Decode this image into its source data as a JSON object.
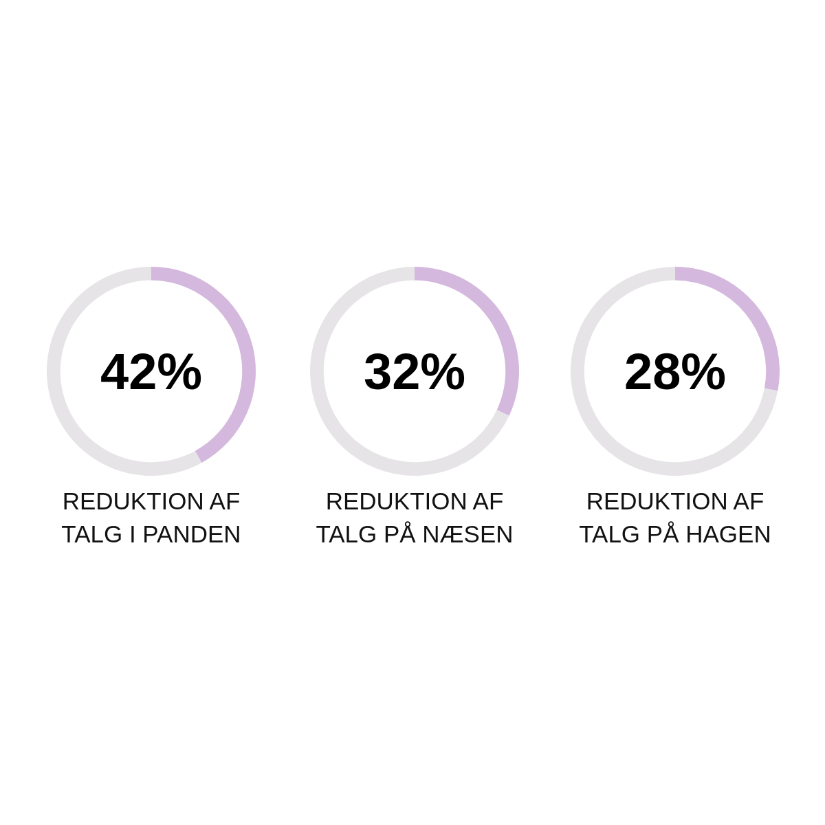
{
  "chart_data": [
    {
      "type": "donut",
      "title": "REDUKTION AF TALG I PANDEN",
      "categories": [
        null,
        null
      ],
      "values": [
        42,
        58
      ],
      "colors": [
        "#d4b8dd",
        "#e6e4e7"
      ],
      "annotations": [
        "42%"
      ]
    },
    {
      "type": "donut",
      "title": "REDUKTION AF TALG PÅ NÆSEN",
      "categories": [
        null,
        null
      ],
      "values": [
        32,
        68
      ],
      "colors": [
        "#d4b8dd",
        "#e6e4e7"
      ],
      "annotations": [
        "32%"
      ]
    },
    {
      "type": "donut",
      "title": "REDUKTION AF TALG PÅ HAGEN",
      "categories": [
        null,
        null
      ],
      "values": [
        28,
        72
      ],
      "colors": [
        "#d4b8dd",
        "#e6e4e7"
      ],
      "annotations": [
        "28%"
      ]
    }
  ]
}
